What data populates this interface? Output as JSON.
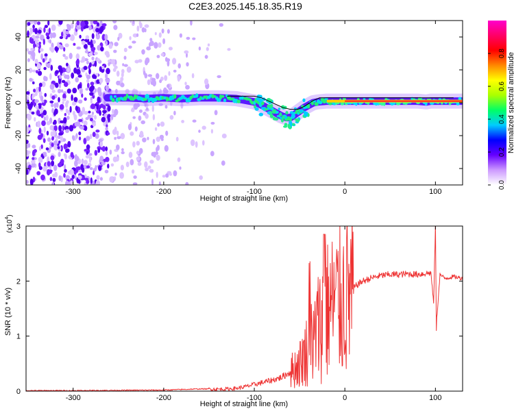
{
  "figure": {
    "title": "C2E3.2025.145.18.35.R19"
  },
  "chart_data": [
    {
      "type": "heatmap",
      "title": "C2E3.2025.145.18.35.R19",
      "xlabel": "Height of straight line (km)",
      "ylabel": "Frequency (Hz)",
      "xlim": [
        -352,
        130
      ],
      "ylim": [
        -50,
        50
      ],
      "xticks": [
        -300,
        -200,
        -100,
        0,
        100
      ],
      "yticks": [
        -40,
        -20,
        0,
        20,
        40
      ],
      "colorbar": {
        "label": "Normalized spectral amplitude",
        "range": [
          0.0,
          1.0
        ],
        "ticks": [
          "0.0",
          "0.2",
          "0.4",
          "0.6",
          "0.8"
        ],
        "colors": [
          "#ffffff",
          "#cc99ff",
          "#6600ff",
          "#0000ff",
          "#00ccff",
          "#00ff66",
          "#aaff00",
          "#ffff00",
          "#ff8800",
          "#ff0000",
          "#ff0066",
          "#ff00cc"
        ]
      },
      "ridge": {
        "x": [
          -262,
          -240,
          -220,
          -200,
          -180,
          -160,
          -140,
          -120,
          -110,
          -100,
          -95,
          -90,
          -85,
          -80,
          -75,
          -70,
          -65,
          -60,
          -55,
          -50,
          -45,
          -40,
          -35,
          -30,
          -20,
          -10,
          0,
          20,
          40,
          60,
          80,
          90,
          95,
          100,
          110,
          120,
          130
        ],
        "y": [
          3,
          3,
          2.5,
          3,
          2.5,
          3,
          3,
          2.5,
          1.5,
          0.5,
          -0.5,
          -2,
          -3.5,
          -5,
          -6.5,
          -8,
          -9,
          -9,
          -7,
          -5,
          -3,
          -1.5,
          0,
          0.5,
          1,
          1,
          1,
          1,
          1,
          1,
          1,
          0.5,
          1,
          1,
          1,
          1,
          1
        ]
      },
      "trace_x": [
        -130,
        -120,
        -108,
        -100,
        -92,
        -84,
        -76,
        -68,
        -60,
        -52,
        -44,
        -36,
        -28,
        -20,
        -10,
        0,
        20,
        40,
        60,
        80,
        100,
        110,
        120
      ],
      "trace_y": [
        4,
        4,
        4,
        4,
        3,
        1,
        -1,
        -3,
        -4,
        -4,
        -2,
        1,
        3,
        3,
        3,
        3,
        3,
        3,
        3,
        3,
        3,
        3,
        3
      ]
    },
    {
      "type": "line",
      "xlabel": "Height of straight line (km)",
      "ylabel": "SNR (10 * v/v)",
      "y_multiplier": "(x10",
      "y_multiplier_exp": "4",
      "y_multiplier_close": ")",
      "xlim": [
        -352,
        130
      ],
      "ylim": [
        0,
        3.0
      ],
      "xticks": [
        -300,
        -200,
        -100,
        0,
        100
      ],
      "yticks": [
        0,
        1,
        2,
        3
      ],
      "series": [
        {
          "color": "#ee3333",
          "x": [
            -352,
            -300,
            -250,
            -200,
            -180,
            -160,
            -150,
            -140,
            -130,
            -120,
            -110,
            -100,
            -90,
            -80,
            -70,
            -60,
            -50,
            -45,
            -40,
            -35,
            -30,
            -25,
            -20,
            -15,
            -10,
            -5,
            0,
            5,
            10,
            15,
            20,
            30,
            40,
            50,
            60,
            70,
            80,
            90,
            95,
            98,
            100,
            101,
            105,
            110,
            120,
            130
          ],
          "y": [
            0.01,
            0.01,
            0.015,
            0.02,
            0.03,
            0.04,
            0.04,
            0.035,
            0.04,
            0.05,
            0.08,
            0.12,
            0.16,
            0.2,
            0.25,
            0.35,
            0.5,
            0.65,
            0.8,
            0.95,
            1.15,
            1.3,
            1.45,
            1.55,
            1.6,
            1.65,
            1.7,
            1.78,
            1.88,
            1.95,
            2.0,
            2.06,
            2.1,
            2.12,
            2.12,
            2.13,
            2.12,
            2.14,
            2.15,
            1.6,
            3.0,
            1.2,
            2.12,
            2.05,
            2.08,
            2.05
          ]
        }
      ]
    }
  ]
}
